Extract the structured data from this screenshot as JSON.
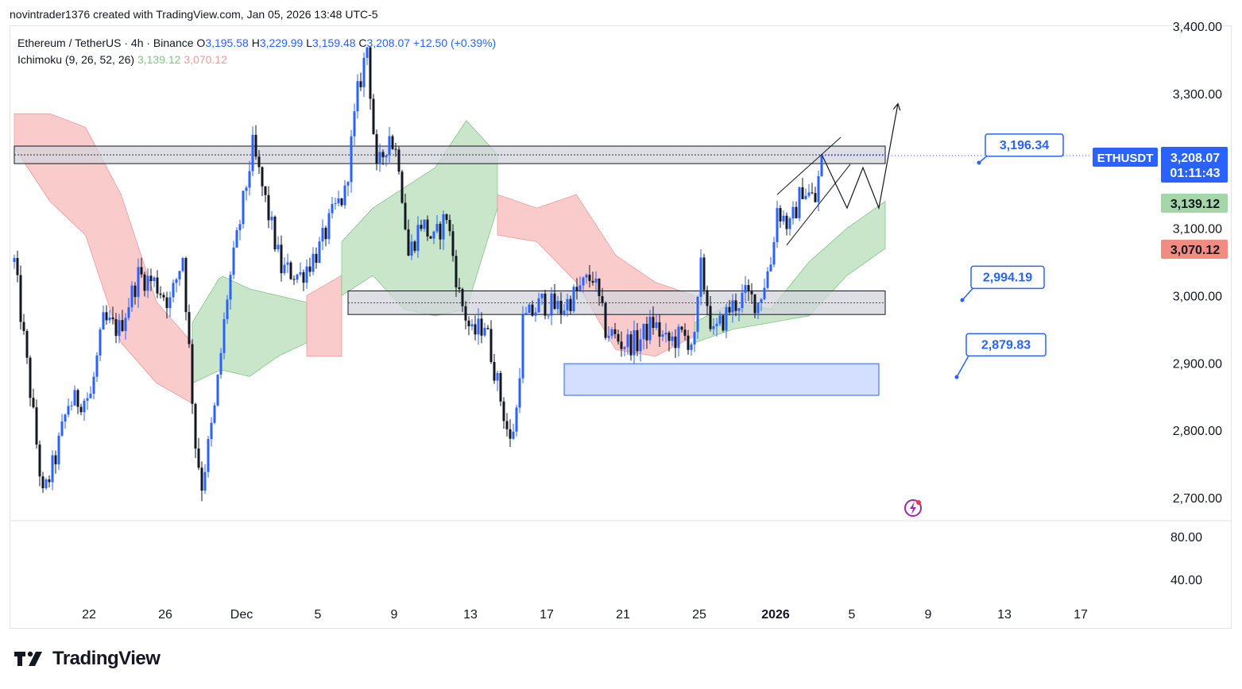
{
  "header": {
    "credit": "novintrader1376 created with TradingView.com, Jan 05, 2026 13:48 UTC-5"
  },
  "legend": {
    "symbol": "Ethereum / TetherUS · 4h · Binance",
    "o_label": "O",
    "o": "3,195.58",
    "h_label": "H",
    "h": "3,229.99",
    "l_label": "L",
    "l": "3,159.48",
    "c_label": "C",
    "c": "3,208.07",
    "change": "+12.50 (+0.39%)",
    "indicator": "Ichimoku (9, 26, 52, 26)",
    "ind_v1": "3,139.12",
    "ind_v2": "3,070.12"
  },
  "footer": {
    "brand": "TradingView"
  },
  "colors": {
    "up": "#2962ff",
    "down": "#131722",
    "cloud_green": "#a5d6a7",
    "cloud_red": "#f7a8a8",
    "zone_gray": "#d1d4dc",
    "zone_blue": "#cfdcff",
    "badge_blue": "#2962ff",
    "badge_green": "#a5d6a7",
    "badge_red": "#f28b82"
  },
  "chart_data": {
    "type": "candlestick",
    "title": "Ethereum / TetherUS · 4h · Binance",
    "ylim": [
      2650,
      3420
    ],
    "y_ticks": [
      "3,400.00",
      "3,300.00",
      "3,100.00",
      "3,000.00",
      "2,900.00",
      "2,800.00",
      "2,700.00"
    ],
    "y_tick_values": [
      3400,
      3300,
      3100,
      3000,
      2900,
      2800,
      2700
    ],
    "x_ticks": [
      {
        "label": "22",
        "idx": 8
      },
      {
        "label": "26",
        "idx": 32
      },
      {
        "label": "Dec",
        "idx": 56
      },
      {
        "label": "5",
        "idx": 80
      },
      {
        "label": "9",
        "idx": 104
      },
      {
        "label": "13",
        "idx": 128
      },
      {
        "label": "17",
        "idx": 152
      },
      {
        "label": "21",
        "idx": 176
      },
      {
        "label": "25",
        "idx": 200
      },
      {
        "label": "2026",
        "idx": 224
      },
      {
        "label": "5",
        "idx": 248
      },
      {
        "label": "9",
        "idx": 272
      },
      {
        "label": "13",
        "idx": 296
      },
      {
        "label": "17",
        "idx": 320
      }
    ],
    "sub_pane_ticks": [
      "80.00",
      "40.00"
    ],
    "keyframes": [
      [
        0,
        3050
      ],
      [
        6,
        2820
      ],
      [
        9,
        2700
      ],
      [
        13,
        2760
      ],
      [
        17,
        2840
      ],
      [
        24,
        2850
      ],
      [
        28,
        2960
      ],
      [
        33,
        2950
      ],
      [
        39,
        3030
      ],
      [
        44,
        3020
      ],
      [
        49,
        2990
      ],
      [
        53,
        3060
      ],
      [
        57,
        2780
      ],
      [
        59,
        2720
      ],
      [
        63,
        2830
      ],
      [
        67,
        3000
      ],
      [
        71,
        3110
      ],
      [
        75,
        3220
      ],
      [
        79,
        3140
      ],
      [
        84,
        3040
      ],
      [
        90,
        3030
      ],
      [
        96,
        3070
      ],
      [
        101,
        3130
      ],
      [
        104,
        3150
      ],
      [
        108,
        3300
      ],
      [
        111,
        3370
      ],
      [
        114,
        3180
      ],
      [
        118,
        3240
      ],
      [
        121,
        3200
      ],
      [
        124,
        3060
      ],
      [
        128,
        3110
      ],
      [
        132,
        3080
      ],
      [
        136,
        3120
      ],
      [
        140,
        3000
      ],
      [
        144,
        2940
      ],
      [
        148,
        2960
      ],
      [
        152,
        2870
      ],
      [
        156,
        2780
      ],
      [
        158,
        2830
      ],
      [
        160,
        2960
      ],
      [
        166,
        2990
      ],
      [
        172,
        2980
      ],
      [
        178,
        3010
      ],
      [
        182,
        3030
      ],
      [
        186,
        2950
      ],
      [
        191,
        2930
      ],
      [
        196,
        2930
      ],
      [
        201,
        2960
      ],
      [
        205,
        2930
      ],
      [
        210,
        2940
      ],
      [
        214,
        2930
      ],
      [
        216,
        3040
      ],
      [
        220,
        2940
      ],
      [
        225,
        2980
      ],
      [
        230,
        3000
      ],
      [
        234,
        2990
      ],
      [
        238,
        3050
      ],
      [
        240,
        3130
      ],
      [
        244,
        3100
      ],
      [
        248,
        3160
      ],
      [
        252,
        3140
      ],
      [
        254,
        3208.07
      ]
    ],
    "ichimoku_cloud": {
      "legend_values": {
        "leading_span_a": 3139.12,
        "leading_span_b": 3070.12
      },
      "segments": [
        {
          "color": "red",
          "from": 0,
          "to": 56,
          "upper": [
            3270,
            3270,
            3250,
            3150,
            2990,
            2930
          ],
          "lower": [
            3220,
            3140,
            3090,
            2930,
            2870,
            2840
          ]
        },
        {
          "color": "green",
          "from": 56,
          "to": 92,
          "upper": [
            2960,
            3030,
            3010,
            3000,
            2990
          ],
          "lower": [
            2870,
            2890,
            2880,
            2910,
            2930
          ]
        },
        {
          "color": "red",
          "from": 92,
          "to": 103,
          "upper": [
            3000,
            3030
          ],
          "lower": [
            2910,
            2910
          ]
        },
        {
          "color": "green",
          "from": 103,
          "to": 152,
          "upper": [
            3080,
            3130,
            3160,
            3190,
            3260,
            3210
          ],
          "lower": [
            3000,
            3030,
            2980,
            2970,
            2980,
            3130
          ]
        },
        {
          "color": "red",
          "from": 152,
          "to": 214,
          "upper": [
            3150,
            3130,
            3150,
            3060,
            3020,
            3000
          ],
          "lower": [
            3090,
            3080,
            3020,
            2920,
            2910,
            2940
          ]
        },
        {
          "color": "green",
          "from": 214,
          "to": 274,
          "upper": [
            2960,
            2990,
            2980,
            3050,
            3100,
            3140
          ],
          "lower": [
            2930,
            2950,
            2960,
            2970,
            3030,
            3070
          ]
        }
      ]
    },
    "zones": [
      {
        "name": "resistance",
        "y_top": 3222,
        "y_bottom": 3196,
        "from_idx": 0,
        "to_idx": 274,
        "color": "gray"
      },
      {
        "name": "support",
        "y_top": 3007,
        "y_bottom": 2972,
        "from_idx": 105,
        "to_idx": 274,
        "color": "gray"
      },
      {
        "name": "demand",
        "y_top": 2899,
        "y_bottom": 2852,
        "from_idx": 173,
        "to_idx": 272,
        "color": "blue"
      }
    ],
    "annotations": [
      {
        "label": "3,196.34",
        "value": 3196.34
      },
      {
        "label": "2,994.19",
        "value": 2994.19
      },
      {
        "label": "2,879.83",
        "value": 2879.83
      }
    ],
    "price_badges": [
      {
        "symbol": "ETHUSDT",
        "price": "3,208.07",
        "countdown": "01:11:43",
        "value": 3208.07
      },
      {
        "price": "3,139.12",
        "value": 3139.12
      },
      {
        "price": "3,070.12",
        "value": 3070.12
      }
    ],
    "projection_path": [
      [
        254,
        3210
      ],
      [
        262,
        3130
      ],
      [
        267,
        3190
      ],
      [
        272,
        3130
      ],
      [
        278,
        3285
      ]
    ],
    "channel": {
      "upper": [
        [
          240,
          3150
        ],
        [
          260,
          3235
        ]
      ],
      "lower": [
        [
          243,
          3075
        ],
        [
          263,
          3195
        ]
      ]
    }
  }
}
